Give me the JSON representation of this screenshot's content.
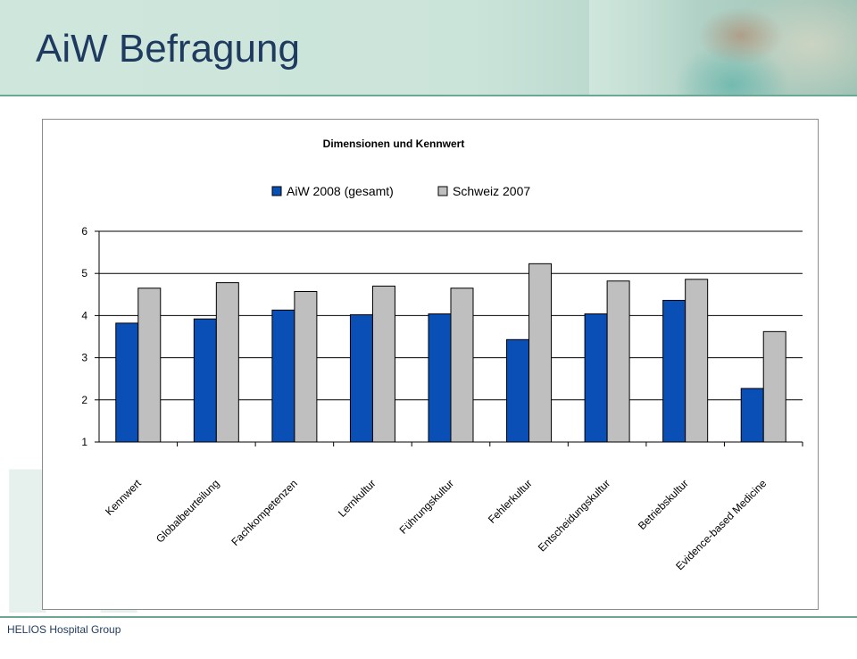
{
  "slide": {
    "title": "AiW Befragung",
    "footer": "HELIOS Hospital Group"
  },
  "colors": {
    "header_bg": "#cfe6dc",
    "accent_line": "#6aa893",
    "title_text": "#1f3a5f",
    "series_aiw": "#0a4fb5",
    "series_schweiz": "#bfbfbf"
  },
  "chart_data": {
    "type": "bar",
    "title": "Dimensionen und Kennwert",
    "categories": [
      "Kennwert",
      "Globalbeurteilung",
      "Fachkompetenzen",
      "Lernkultur",
      "Führungskultur",
      "Fehlerkultur",
      "Entscheidungskultur",
      "Betriebskultur",
      "Evidence-based Medicine"
    ],
    "series": [
      {
        "name": "AiW 2008 (gesamt)",
        "color": "#0a4fb5",
        "values": [
          3.82,
          3.92,
          4.13,
          4.02,
          4.04,
          3.43,
          4.04,
          4.36,
          2.27
        ]
      },
      {
        "name": "Schweiz 2007",
        "color": "#bfbfbf",
        "values": [
          4.65,
          4.78,
          4.57,
          4.7,
          4.65,
          5.23,
          4.82,
          4.86,
          3.62
        ]
      }
    ],
    "ylim": [
      1,
      6
    ],
    "yticks": [
      1,
      2,
      3,
      4,
      5,
      6
    ],
    "grid": true,
    "legend_position": "top"
  }
}
